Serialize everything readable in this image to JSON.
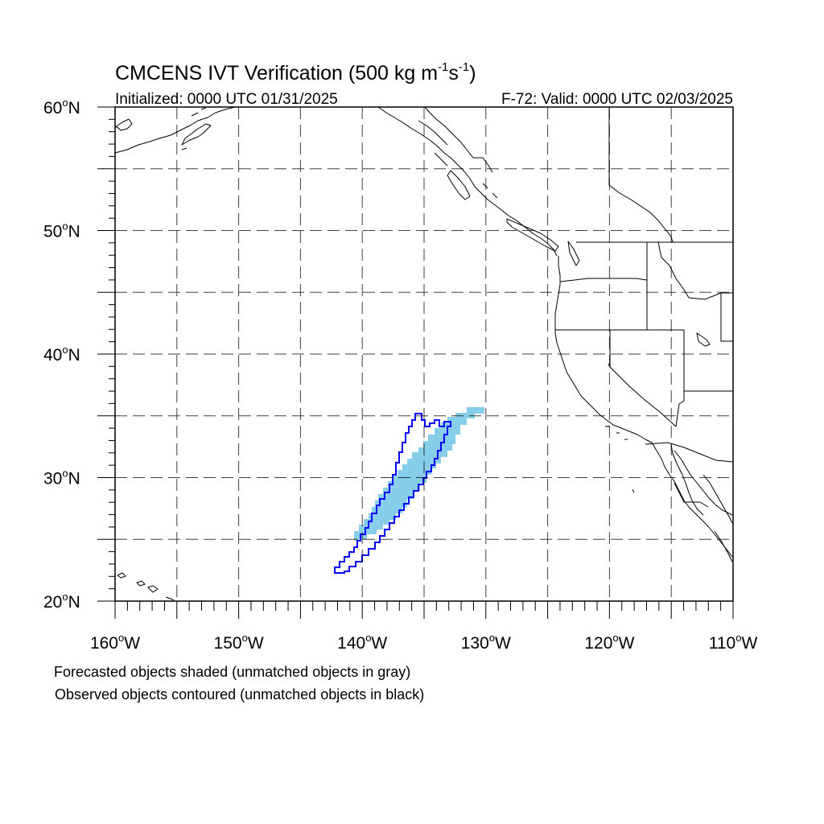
{
  "title": {
    "main": "CMCENS IVT Verification (500 kg m",
    "sup1": "-1",
    "mid": "s",
    "sup2": "-1",
    "end": ")"
  },
  "init_text": "Initialized: 0000 UTC 01/31/2025",
  "valid_text": "F-72: Valid: 0000 UTC 02/03/2025",
  "lat_labels": [
    "60",
    "50",
    "40",
    "30",
    "20"
  ],
  "lat_suffix": "N",
  "lon_labels": [
    "160",
    "150",
    "140",
    "130",
    "120",
    "110"
  ],
  "lon_suffix": "W",
  "degree_symbol": "o",
  "map_extent": {
    "lon_min": -160,
    "lon_max": -110,
    "lat_min": 20,
    "lat_max": 60
  },
  "legend": {
    "line1": "Forecasted objects shaded (unmatched objects in gray)",
    "line2": "Observed objects contoured (unmatched objects in black)"
  },
  "colors": {
    "forecast_fill": "#87ceeb",
    "observed_contour": "#0000ff",
    "gridline": "#000000",
    "coastline": "#000000"
  }
}
